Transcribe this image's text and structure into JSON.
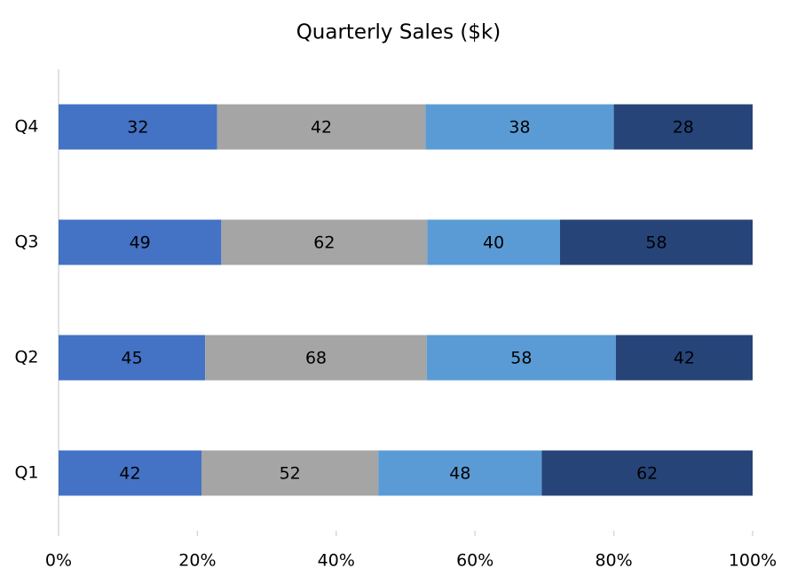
{
  "chart_data": {
    "type": "stacked-bar-100-horizontal",
    "title": "Quarterly Sales ($k)",
    "categories": [
      "Q1",
      "Q2",
      "Q3",
      "Q4"
    ],
    "series": [
      {
        "color": "#4472c4",
        "values": [
          42,
          45,
          49,
          32
        ]
      },
      {
        "color": "#a5a5a5",
        "values": [
          52,
          68,
          62,
          42
        ]
      },
      {
        "color": "#5b9bd5",
        "values": [
          48,
          58,
          40,
          38
        ]
      },
      {
        "color": "#264478",
        "values": [
          62,
          42,
          58,
          28
        ]
      }
    ],
    "xlim": [
      0,
      100
    ],
    "xticks": [
      {
        "value": 0,
        "label": "0%"
      },
      {
        "value": 20,
        "label": "20%"
      },
      {
        "value": 40,
        "label": "40%"
      },
      {
        "value": 60,
        "label": "60%"
      },
      {
        "value": 80,
        "label": "80%"
      },
      {
        "value": 100,
        "label": "100%"
      }
    ],
    "grid": false
  }
}
